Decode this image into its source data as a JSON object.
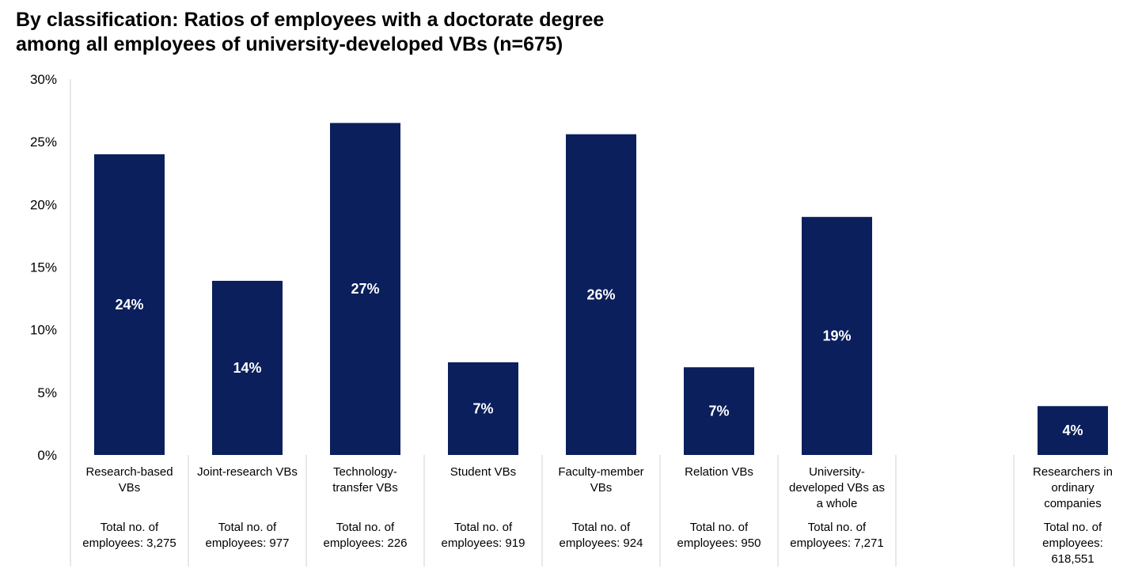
{
  "title": {
    "line1": "By classification: Ratios of employees with a doctorate degree",
    "line2": "among all employees of university-developed VBs (n=675)"
  },
  "chart_data": {
    "type": "bar",
    "title": "By classification: Ratios of employees with a doctorate degree among all employees of university-developed VBs (n=675)",
    "ylim": [
      0,
      30
    ],
    "yticks": [
      "0%",
      "5%",
      "10%",
      "15%",
      "20%",
      "25%",
      "30%"
    ],
    "grid": false,
    "bar_color": "#0a1f5c",
    "categories": [
      {
        "label_lines": [
          "Research-based",
          "VBs"
        ],
        "total_lines": [
          "Total no. of",
          "employees: 3,275"
        ],
        "value": 24.0,
        "data_label": "24%"
      },
      {
        "label_lines": [
          "Joint-research VBs"
        ],
        "total_lines": [
          "Total no. of",
          "employees: 977"
        ],
        "value": 13.9,
        "data_label": "14%"
      },
      {
        "label_lines": [
          "Technology-",
          "transfer VBs"
        ],
        "total_lines": [
          "Total no. of",
          "employees: 226"
        ],
        "value": 26.5,
        "data_label": "27%"
      },
      {
        "label_lines": [
          "Student VBs"
        ],
        "total_lines": [
          "Total no. of",
          "employees: 919"
        ],
        "value": 7.4,
        "data_label": "7%"
      },
      {
        "label_lines": [
          "Faculty-member",
          "VBs"
        ],
        "total_lines": [
          "Total no. of",
          "employees: 924"
        ],
        "value": 25.6,
        "data_label": "26%"
      },
      {
        "label_lines": [
          "Relation VBs"
        ],
        "total_lines": [
          "Total no. of",
          "employees: 950"
        ],
        "value": 7.0,
        "data_label": "7%"
      },
      {
        "label_lines": [
          "University-",
          "developed VBs as",
          "a whole"
        ],
        "total_lines": [
          "Total no. of",
          "employees: 7,271"
        ],
        "value": 19.0,
        "data_label": "19%"
      },
      {
        "label_lines": [],
        "total_lines": [],
        "value": null,
        "data_label": ""
      },
      {
        "label_lines": [
          "Researchers in",
          "ordinary",
          "companies"
        ],
        "total_lines": [
          "Total no. of",
          "employees:",
          "618,551"
        ],
        "value": 3.9,
        "data_label": "4%"
      }
    ]
  }
}
